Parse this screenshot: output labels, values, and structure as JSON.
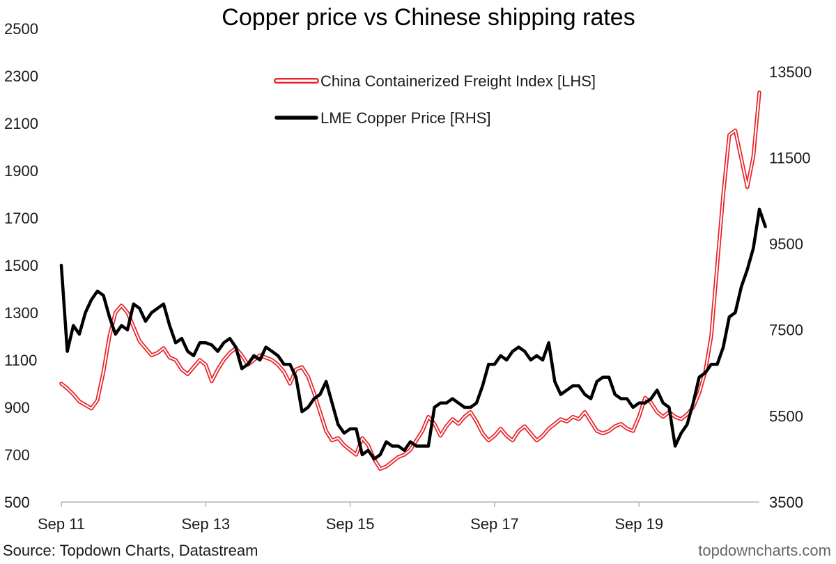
{
  "chart_data": {
    "type": "line",
    "title": "Copper price vs Chinese shipping rates",
    "x_axis": {
      "start": "2011-09",
      "end": "2021-05",
      "tick_labels": [
        "Sep 11",
        "Sep 13",
        "Sep 15",
        "Sep 17",
        "Sep 19"
      ],
      "tick_dates": [
        "2011-09",
        "2013-09",
        "2015-09",
        "2017-09",
        "2019-09"
      ]
    },
    "y_left": {
      "range": [
        500,
        2500
      ],
      "ticks": [
        500,
        700,
        900,
        1100,
        1300,
        1500,
        1700,
        1900,
        2100,
        2300,
        2500
      ]
    },
    "y_right": {
      "range": [
        3500,
        14500
      ],
      "ticks": [
        3500,
        5500,
        7500,
        9500,
        11500,
        13500
      ]
    },
    "legend": {
      "placement": "top-center",
      "entries": [
        "China Containerized Freight Index [LHS]",
        "LME Copper Price [RHS]"
      ]
    },
    "series": [
      {
        "name": "China Containerized Freight Index [LHS]",
        "axis": "left",
        "color": "#e8232a",
        "style": "double-line",
        "points": [
          [
            "2011-09",
            1000
          ],
          [
            "2011-10",
            980
          ],
          [
            "2011-11",
            955
          ],
          [
            "2011-12",
            925
          ],
          [
            "2012-01",
            910
          ],
          [
            "2012-02",
            895
          ],
          [
            "2012-03",
            930
          ],
          [
            "2012-04",
            1050
          ],
          [
            "2012-05",
            1200
          ],
          [
            "2012-06",
            1300
          ],
          [
            "2012-07",
            1330
          ],
          [
            "2012-08",
            1300
          ],
          [
            "2012-09",
            1240
          ],
          [
            "2012-10",
            1180
          ],
          [
            "2012-11",
            1150
          ],
          [
            "2012-12",
            1120
          ],
          [
            "2013-01",
            1130
          ],
          [
            "2013-02",
            1150
          ],
          [
            "2013-03",
            1110
          ],
          [
            "2013-04",
            1100
          ],
          [
            "2013-05",
            1060
          ],
          [
            "2013-06",
            1040
          ],
          [
            "2013-07",
            1070
          ],
          [
            "2013-08",
            1100
          ],
          [
            "2013-09",
            1080
          ],
          [
            "2013-10",
            1010
          ],
          [
            "2013-11",
            1060
          ],
          [
            "2013-12",
            1100
          ],
          [
            "2014-01",
            1130
          ],
          [
            "2014-02",
            1150
          ],
          [
            "2014-03",
            1120
          ],
          [
            "2014-04",
            1080
          ],
          [
            "2014-05",
            1100
          ],
          [
            "2014-06",
            1120
          ],
          [
            "2014-07",
            1110
          ],
          [
            "2014-08",
            1100
          ],
          [
            "2014-09",
            1080
          ],
          [
            "2014-10",
            1050
          ],
          [
            "2014-11",
            1000
          ],
          [
            "2014-12",
            1060
          ],
          [
            "2015-01",
            1070
          ],
          [
            "2015-02",
            1030
          ],
          [
            "2015-03",
            960
          ],
          [
            "2015-04",
            880
          ],
          [
            "2015-05",
            800
          ],
          [
            "2015-06",
            760
          ],
          [
            "2015-07",
            770
          ],
          [
            "2015-08",
            740
          ],
          [
            "2015-09",
            720
          ],
          [
            "2015-10",
            700
          ],
          [
            "2015-11",
            770
          ],
          [
            "2015-12",
            740
          ],
          [
            "2016-01",
            680
          ],
          [
            "2016-02",
            640
          ],
          [
            "2016-03",
            650
          ],
          [
            "2016-04",
            670
          ],
          [
            "2016-05",
            690
          ],
          [
            "2016-06",
            700
          ],
          [
            "2016-07",
            720
          ],
          [
            "2016-08",
            760
          ],
          [
            "2016-09",
            800
          ],
          [
            "2016-10",
            860
          ],
          [
            "2016-11",
            830
          ],
          [
            "2016-12",
            780
          ],
          [
            "2017-01",
            820
          ],
          [
            "2017-02",
            850
          ],
          [
            "2017-03",
            830
          ],
          [
            "2017-04",
            860
          ],
          [
            "2017-05",
            880
          ],
          [
            "2017-06",
            840
          ],
          [
            "2017-07",
            790
          ],
          [
            "2017-08",
            760
          ],
          [
            "2017-09",
            780
          ],
          [
            "2017-10",
            810
          ],
          [
            "2017-11",
            780
          ],
          [
            "2017-12",
            760
          ],
          [
            "2018-01",
            800
          ],
          [
            "2018-02",
            820
          ],
          [
            "2018-03",
            790
          ],
          [
            "2018-04",
            760
          ],
          [
            "2018-05",
            780
          ],
          [
            "2018-06",
            810
          ],
          [
            "2018-07",
            830
          ],
          [
            "2018-08",
            850
          ],
          [
            "2018-09",
            840
          ],
          [
            "2018-10",
            860
          ],
          [
            "2018-11",
            850
          ],
          [
            "2018-12",
            880
          ],
          [
            "2019-01",
            840
          ],
          [
            "2019-02",
            800
          ],
          [
            "2019-03",
            790
          ],
          [
            "2019-04",
            800
          ],
          [
            "2019-05",
            820
          ],
          [
            "2019-06",
            830
          ],
          [
            "2019-07",
            810
          ],
          [
            "2019-08",
            800
          ],
          [
            "2019-09",
            860
          ],
          [
            "2019-10",
            940
          ],
          [
            "2019-11",
            920
          ],
          [
            "2019-12",
            880
          ],
          [
            "2020-01",
            860
          ],
          [
            "2020-02",
            880
          ],
          [
            "2020-03",
            860
          ],
          [
            "2020-04",
            850
          ],
          [
            "2020-05",
            870
          ],
          [
            "2020-06",
            900
          ],
          [
            "2020-07",
            960
          ],
          [
            "2020-08",
            1050
          ],
          [
            "2020-09",
            1200
          ],
          [
            "2020-10",
            1500
          ],
          [
            "2020-11",
            1800
          ],
          [
            "2020-12",
            2050
          ],
          [
            "2021-01",
            2070
          ],
          [
            "2021-02",
            1950
          ],
          [
            "2021-03",
            1830
          ],
          [
            "2021-04",
            1960
          ],
          [
            "2021-05",
            2230
          ]
        ]
      },
      {
        "name": "LME Copper Price [RHS]",
        "axis": "right",
        "color": "#000000",
        "style": "solid",
        "points": [
          [
            "2011-09",
            9000
          ],
          [
            "2011-10",
            7000
          ],
          [
            "2011-11",
            7600
          ],
          [
            "2011-12",
            7400
          ],
          [
            "2012-01",
            7900
          ],
          [
            "2012-02",
            8200
          ],
          [
            "2012-03",
            8400
          ],
          [
            "2012-04",
            8300
          ],
          [
            "2012-05",
            7800
          ],
          [
            "2012-06",
            7400
          ],
          [
            "2012-07",
            7600
          ],
          [
            "2012-08",
            7500
          ],
          [
            "2012-09",
            8100
          ],
          [
            "2012-10",
            8000
          ],
          [
            "2012-11",
            7700
          ],
          [
            "2012-12",
            7900
          ],
          [
            "2013-01",
            8000
          ],
          [
            "2013-02",
            8100
          ],
          [
            "2013-03",
            7600
          ],
          [
            "2013-04",
            7200
          ],
          [
            "2013-05",
            7300
          ],
          [
            "2013-06",
            7000
          ],
          [
            "2013-07",
            6900
          ],
          [
            "2013-08",
            7200
          ],
          [
            "2013-09",
            7200
          ],
          [
            "2013-10",
            7150
          ],
          [
            "2013-11",
            7000
          ],
          [
            "2013-12",
            7200
          ],
          [
            "2014-01",
            7300
          ],
          [
            "2014-02",
            7100
          ],
          [
            "2014-03",
            6600
          ],
          [
            "2014-04",
            6700
          ],
          [
            "2014-05",
            6900
          ],
          [
            "2014-06",
            6800
          ],
          [
            "2014-07",
            7100
          ],
          [
            "2014-08",
            7000
          ],
          [
            "2014-09",
            6900
          ],
          [
            "2014-10",
            6700
          ],
          [
            "2014-11",
            6700
          ],
          [
            "2014-12",
            6400
          ],
          [
            "2015-01",
            5600
          ],
          [
            "2015-02",
            5700
          ],
          [
            "2015-03",
            5900
          ],
          [
            "2015-04",
            6000
          ],
          [
            "2015-05",
            6300
          ],
          [
            "2015-06",
            5800
          ],
          [
            "2015-07",
            5300
          ],
          [
            "2015-08",
            5100
          ],
          [
            "2015-09",
            5200
          ],
          [
            "2015-10",
            5200
          ],
          [
            "2015-11",
            4600
          ],
          [
            "2015-12",
            4700
          ],
          [
            "2016-01",
            4500
          ],
          [
            "2016-02",
            4600
          ],
          [
            "2016-03",
            4900
          ],
          [
            "2016-04",
            4800
          ],
          [
            "2016-05",
            4800
          ],
          [
            "2016-06",
            4700
          ],
          [
            "2016-07",
            4900
          ],
          [
            "2016-08",
            4800
          ],
          [
            "2016-09",
            4800
          ],
          [
            "2016-10",
            4800
          ],
          [
            "2016-11",
            5700
          ],
          [
            "2016-12",
            5800
          ],
          [
            "2017-01",
            5800
          ],
          [
            "2017-02",
            5900
          ],
          [
            "2017-03",
            5800
          ],
          [
            "2017-04",
            5700
          ],
          [
            "2017-05",
            5700
          ],
          [
            "2017-06",
            5800
          ],
          [
            "2017-07",
            6200
          ],
          [
            "2017-08",
            6700
          ],
          [
            "2017-09",
            6700
          ],
          [
            "2017-10",
            6900
          ],
          [
            "2017-11",
            6800
          ],
          [
            "2017-12",
            7000
          ],
          [
            "2018-01",
            7100
          ],
          [
            "2018-02",
            7000
          ],
          [
            "2018-03",
            6800
          ],
          [
            "2018-04",
            6900
          ],
          [
            "2018-05",
            6800
          ],
          [
            "2018-06",
            7200
          ],
          [
            "2018-07",
            6300
          ],
          [
            "2018-08",
            6000
          ],
          [
            "2018-09",
            6100
          ],
          [
            "2018-10",
            6200
          ],
          [
            "2018-11",
            6200
          ],
          [
            "2018-12",
            6000
          ],
          [
            "2019-01",
            5900
          ],
          [
            "2019-02",
            6300
          ],
          [
            "2019-03",
            6400
          ],
          [
            "2019-04",
            6400
          ],
          [
            "2019-05",
            6000
          ],
          [
            "2019-06",
            5900
          ],
          [
            "2019-07",
            5900
          ],
          [
            "2019-08",
            5700
          ],
          [
            "2019-09",
            5800
          ],
          [
            "2019-10",
            5800
          ],
          [
            "2019-11",
            5900
          ],
          [
            "2019-12",
            6100
          ],
          [
            "2020-01",
            5800
          ],
          [
            "2020-02",
            5700
          ],
          [
            "2020-03",
            4800
          ],
          [
            "2020-04",
            5100
          ],
          [
            "2020-05",
            5300
          ],
          [
            "2020-06",
            5800
          ],
          [
            "2020-07",
            6400
          ],
          [
            "2020-08",
            6500
          ],
          [
            "2020-09",
            6700
          ],
          [
            "2020-10",
            6700
          ],
          [
            "2020-11",
            7100
          ],
          [
            "2020-12",
            7800
          ],
          [
            "2021-01",
            7900
          ],
          [
            "2021-02",
            8500
          ],
          [
            "2021-03",
            8900
          ],
          [
            "2021-04",
            9400
          ],
          [
            "2021-05",
            10300
          ],
          [
            "2021-06",
            9900
          ]
        ]
      }
    ]
  },
  "footer": {
    "source": "Source: Topdown Charts, Datastream",
    "brand": "topdowncharts.com"
  }
}
